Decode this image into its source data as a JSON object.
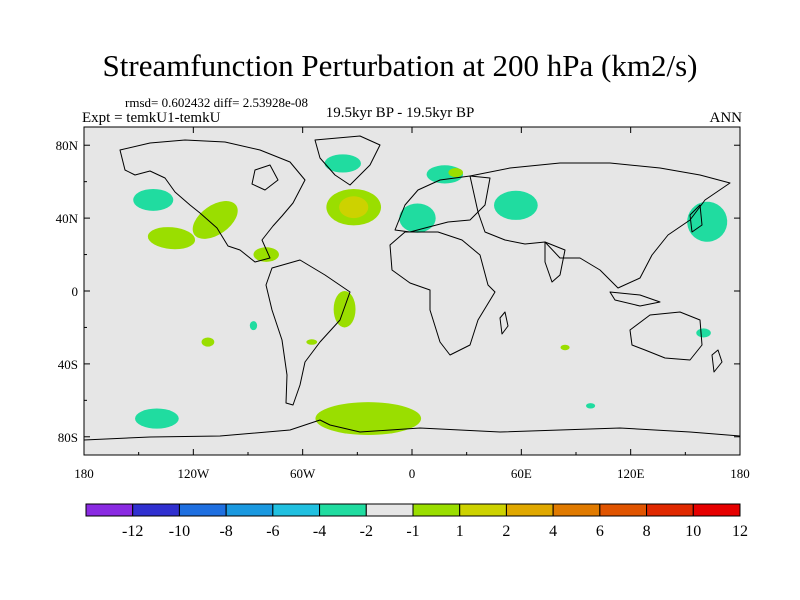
{
  "header": {
    "title": "Streamfunction Perturbation at 200 hPa (km2/s)",
    "stats": "rmsd= 0.602432 diff= 2.53928e-08",
    "expt": "Expt = temkU1-temkU",
    "center_label": "19.5kyr BP - 19.5kyr BP",
    "season": "ANN"
  },
  "chart_data": {
    "type": "filled-contour-map",
    "title": "Streamfunction Perturbation at 200 hPa (km2/s)",
    "projection": "cylindrical-equidistant",
    "xlim": [
      -180,
      180
    ],
    "ylim": [
      -90,
      90
    ],
    "x_ticks": [
      {
        "value": -180,
        "label": "180"
      },
      {
        "value": -120,
        "label": "120W"
      },
      {
        "value": -60,
        "label": "60W"
      },
      {
        "value": 0,
        "label": "0"
      },
      {
        "value": 60,
        "label": "60E"
      },
      {
        "value": 120,
        "label": "120E"
      },
      {
        "value": 180,
        "label": "180"
      }
    ],
    "y_ticks": [
      {
        "value": 80,
        "label": "80N"
      },
      {
        "value": 40,
        "label": "40N"
      },
      {
        "value": 0,
        "label": "0"
      },
      {
        "value": -40,
        "label": "40S"
      },
      {
        "value": -80,
        "label": "80S"
      }
    ],
    "colorbar": {
      "colors": [
        "#8a2be2",
        "#3030d0",
        "#1e6fe0",
        "#1a99e0",
        "#20c0e0",
        "#20dca0",
        "#e6e6e6",
        "#9ade00",
        "#cdd200",
        "#e0a800",
        "#e07a00",
        "#e05400",
        "#e02800",
        "#e60000"
      ],
      "labels": [
        "-12",
        "-10",
        "-8",
        "-6",
        "-4",
        "-2",
        "-1",
        "1",
        "2",
        "4",
        "6",
        "8",
        "10",
        "12"
      ]
    },
    "regions": [
      {
        "name": "N Pacific west",
        "lon": -142,
        "lat": 50,
        "rx": 11,
        "ry": 6,
        "color": "#20dca0"
      },
      {
        "name": "N Pacific band A",
        "lon": -108,
        "lat": 39,
        "rx": 14,
        "ry": 8,
        "rot": -35,
        "color": "#9ade00"
      },
      {
        "name": "N Pacific band B",
        "lon": -132,
        "lat": 29,
        "rx": 13,
        "ry": 6,
        "rot": 5,
        "color": "#9ade00"
      },
      {
        "name": "Greenland",
        "lon": -38,
        "lat": 70,
        "rx": 10,
        "ry": 5,
        "color": "#20dca0"
      },
      {
        "name": "N Atlantic",
        "lon": -32,
        "lat": 46,
        "rx": 15,
        "ry": 10,
        "color": "#9ade00"
      },
      {
        "name": "N Atlantic core",
        "lon": -32,
        "lat": 46,
        "rx": 8,
        "ry": 6,
        "color": "#cdd200"
      },
      {
        "name": "Scandinavia",
        "lon": 18,
        "lat": 64,
        "rx": 10,
        "ry": 5,
        "color": "#20dca0"
      },
      {
        "name": "Scandinavia core",
        "lon": 24,
        "lat": 65,
        "rx": 4,
        "ry": 2.5,
        "color": "#9ade00"
      },
      {
        "name": "Mediterranean",
        "lon": 3,
        "lat": 40,
        "rx": 10,
        "ry": 8,
        "color": "#20dca0"
      },
      {
        "name": "Central Asia",
        "lon": 57,
        "lat": 47,
        "rx": 12,
        "ry": 8,
        "color": "#20dca0"
      },
      {
        "name": "NW Pacific",
        "lon": 162,
        "lat": 38,
        "rx": 11,
        "ry": 11,
        "rot": 30,
        "color": "#20dca0"
      },
      {
        "name": "Caribbean",
        "lon": -80,
        "lat": 20,
        "rx": 7,
        "ry": 4,
        "color": "#9ade00"
      },
      {
        "name": "S Atlantic",
        "lon": -37,
        "lat": -10,
        "rx": 6,
        "ry": 10,
        "color": "#9ade00"
      },
      {
        "name": "S Pacific",
        "lon": -87,
        "lat": -19,
        "rx": 2,
        "ry": 2.5,
        "color": "#20dca0"
      },
      {
        "name": "SE Pacific",
        "lon": -112,
        "lat": -28,
        "rx": 3.5,
        "ry": 2.5,
        "color": "#9ade00"
      },
      {
        "name": "S America coast",
        "lon": -55,
        "lat": -28,
        "rx": 3,
        "ry": 1.5,
        "color": "#9ade00"
      },
      {
        "name": "S Indian Ocean",
        "lon": 84,
        "lat": -31,
        "rx": 2.5,
        "ry": 1.5,
        "color": "#9ade00"
      },
      {
        "name": "Tasman",
        "lon": 160,
        "lat": -23,
        "rx": 4,
        "ry": 2.5,
        "color": "#20dca0"
      },
      {
        "name": "S Pacific high-lat",
        "lon": -140,
        "lat": -70,
        "rx": 12,
        "ry": 5.5,
        "color": "#20dca0"
      },
      {
        "name": "S Atlantic high-lat",
        "lon": -24,
        "lat": -70,
        "rx": 29,
        "ry": 9,
        "color": "#9ade00"
      },
      {
        "name": "S Indian high-lat",
        "lon": 98,
        "lat": -63,
        "rx": 2.5,
        "ry": 1.5,
        "color": "#20dca0"
      }
    ]
  }
}
